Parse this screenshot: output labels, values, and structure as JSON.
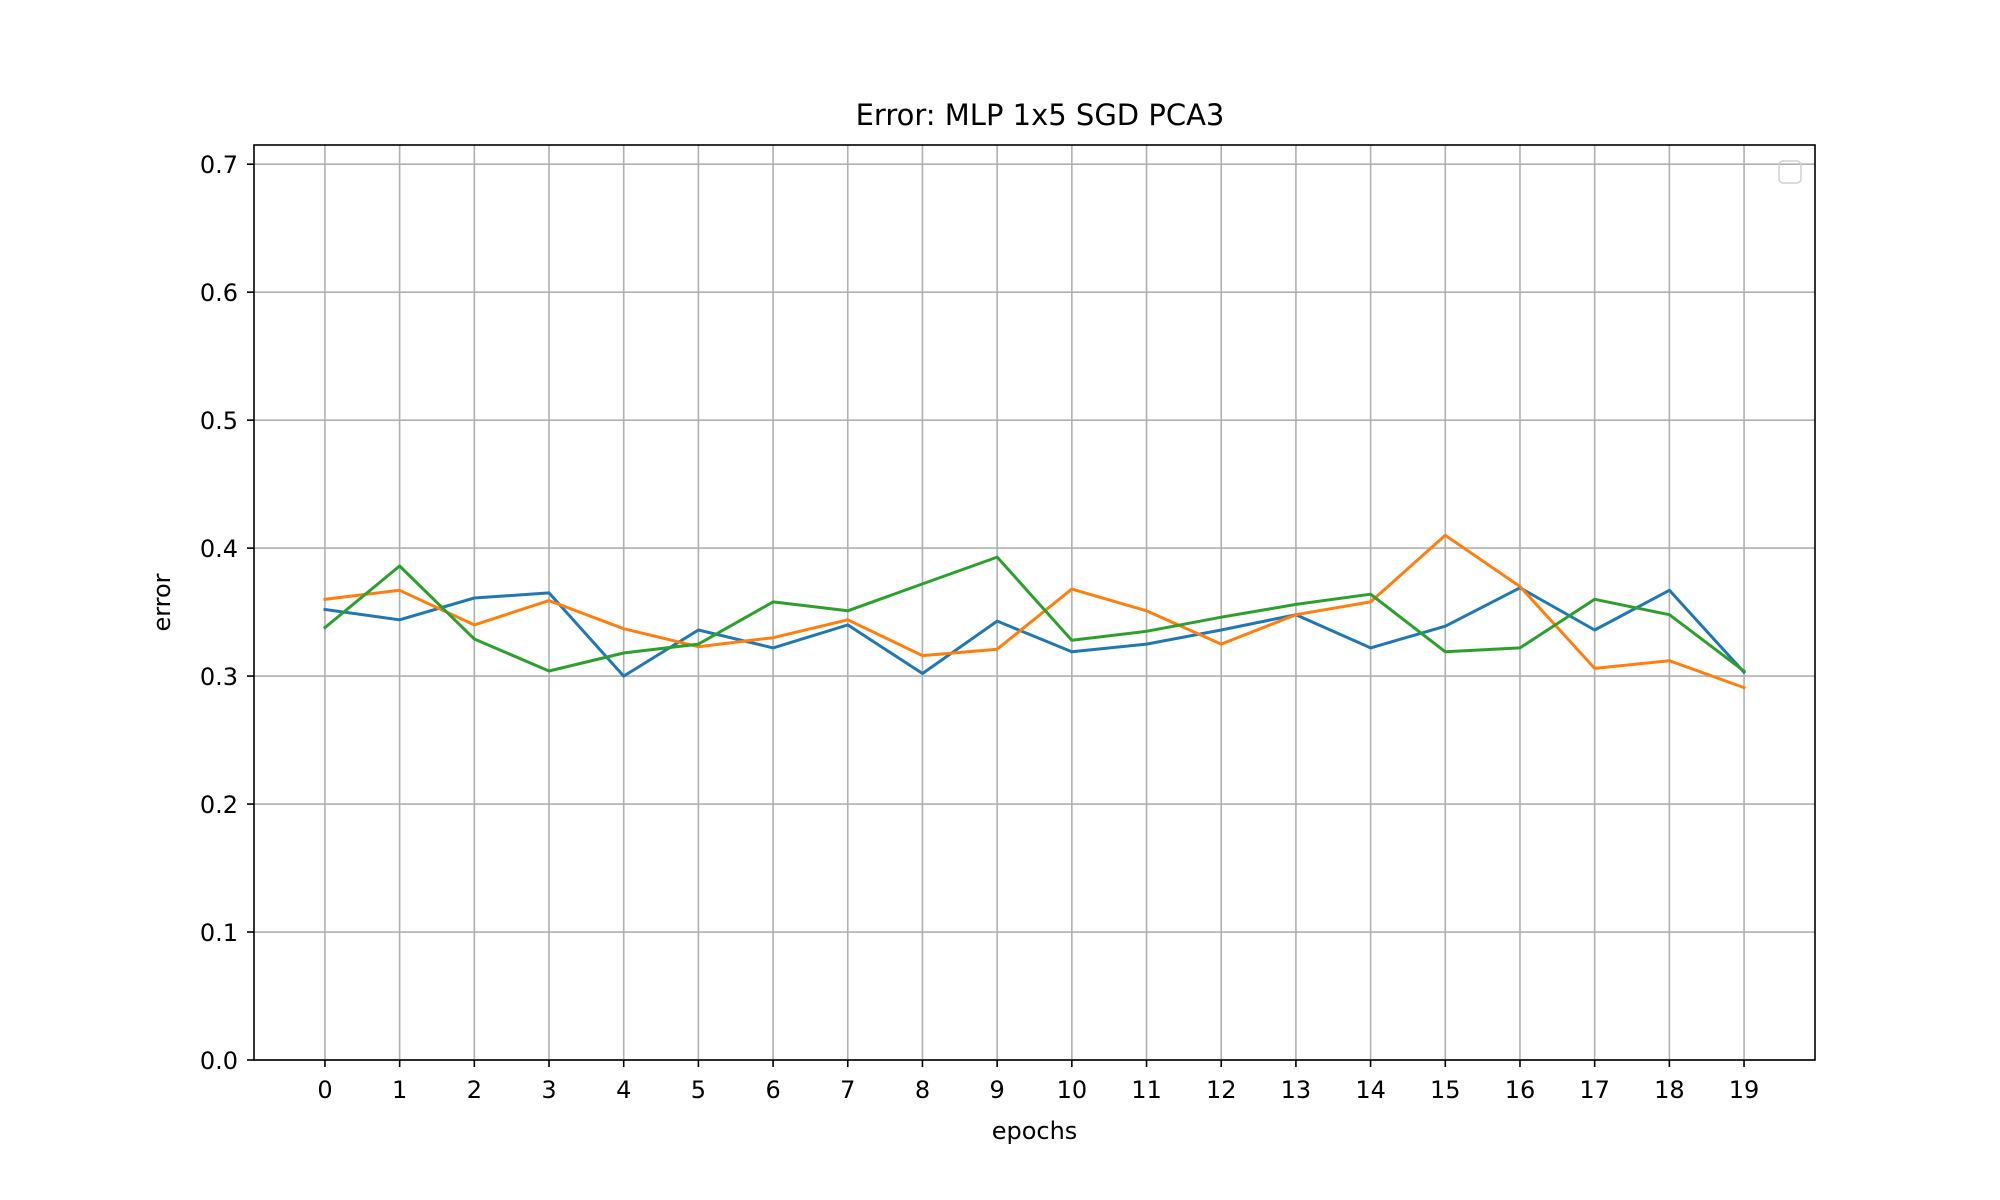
{
  "chart_data": {
    "type": "line",
    "title": "Error: MLP 1x5 SGD PCA3",
    "xlabel": "epochs",
    "ylabel": "error",
    "x": [
      0,
      1,
      2,
      3,
      4,
      5,
      6,
      7,
      8,
      9,
      10,
      11,
      12,
      13,
      14,
      15,
      16,
      17,
      18,
      19
    ],
    "xticks": [
      "0",
      "1",
      "2",
      "3",
      "4",
      "5",
      "6",
      "7",
      "8",
      "9",
      "10",
      "11",
      "12",
      "13",
      "14",
      "15",
      "16",
      "17",
      "18",
      "19"
    ],
    "yticks": [
      "0.0",
      "0.1",
      "0.2",
      "0.3",
      "0.4",
      "0.5",
      "0.6",
      "0.7"
    ],
    "xlim": [
      -0.95,
      19.95
    ],
    "ylim": [
      0.0,
      0.715
    ],
    "grid": true,
    "legend": "upper right (empty)",
    "series": [
      {
        "color": "#1f77b4",
        "values": [
          0.352,
          0.344,
          0.361,
          0.365,
          0.3,
          0.336,
          0.322,
          0.34,
          0.302,
          0.343,
          0.319,
          0.325,
          0.336,
          0.348,
          0.322,
          0.339,
          0.369,
          0.336,
          0.367,
          0.303
        ]
      },
      {
        "color": "#ff7f0e",
        "values": [
          0.36,
          0.367,
          0.34,
          0.359,
          0.337,
          0.323,
          0.33,
          0.344,
          0.316,
          0.321,
          0.368,
          0.351,
          0.325,
          0.348,
          0.358,
          0.41,
          0.37,
          0.306,
          0.312,
          0.291
        ]
      },
      {
        "color": "#2ca02c",
        "values": [
          0.338,
          0.386,
          0.329,
          0.304,
          0.318,
          0.325,
          0.358,
          0.351,
          0.372,
          0.393,
          0.328,
          0.335,
          0.346,
          0.356,
          0.364,
          0.319,
          0.322,
          0.36,
          0.348,
          0.304
        ]
      }
    ]
  }
}
